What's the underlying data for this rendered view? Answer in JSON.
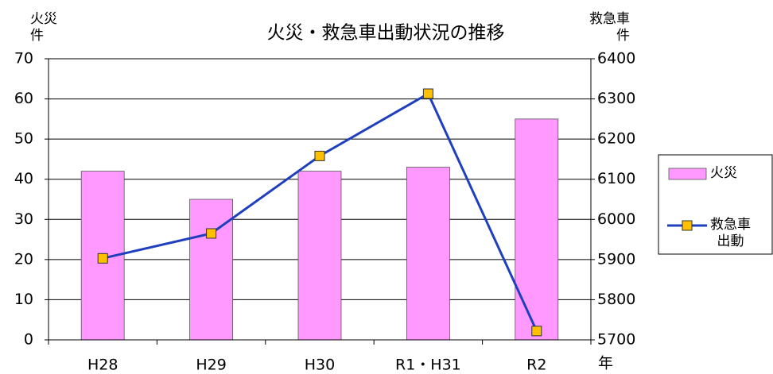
{
  "chart_data": {
    "type": "bar+line",
    "title": "火災・救急車出動状況の推移",
    "y_label": "火災\n件",
    "y2_label": "救急車\n件",
    "x_label": "年",
    "categories": [
      "H28",
      "H29",
      "H30",
      "R1・H31",
      "R2"
    ],
    "series": [
      {
        "name": "火災",
        "type": "bar",
        "color": "#ff99ff",
        "values": [
          42,
          35,
          42,
          43,
          55
        ]
      },
      {
        "name": "救急車\n出動",
        "type": "line",
        "axis": "y2",
        "color": "#1f3fbf",
        "marker_color": "#ffc000",
        "values": [
          5903,
          5965,
          6158,
          6313,
          5722
        ]
      }
    ],
    "ylim": [
      0,
      70
    ],
    "yticks": [
      0,
      10,
      20,
      30,
      40,
      50,
      60,
      70
    ],
    "y2lim": [
      5700,
      6400
    ],
    "y2ticks": [
      5700,
      5800,
      5900,
      6000,
      6100,
      6200,
      6300,
      6400
    ],
    "grid": true,
    "legend": "right"
  }
}
